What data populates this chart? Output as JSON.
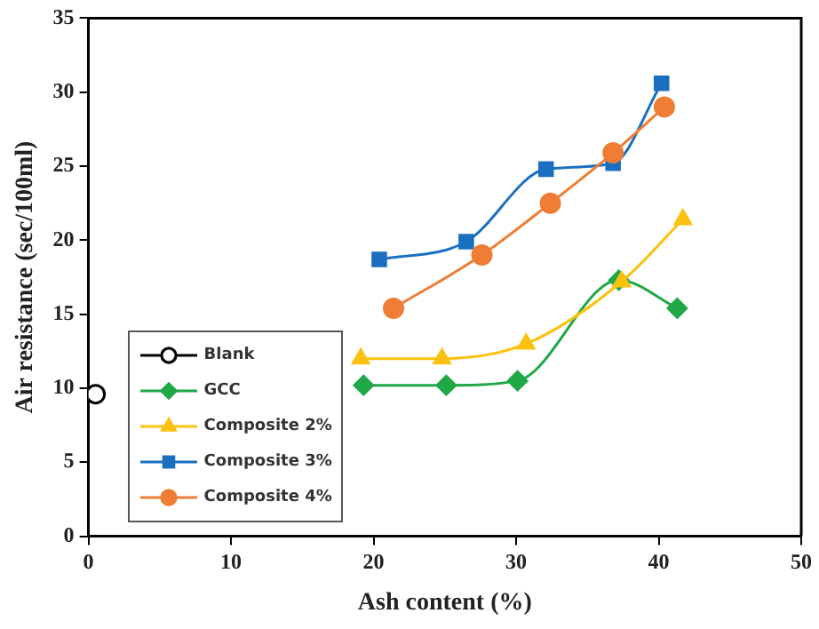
{
  "chart_data": {
    "type": "line",
    "xlabel": "Ash content (%)",
    "ylabel": "Air resistance (sec/100ml)",
    "xlim": [
      0,
      50
    ],
    "xticks": [
      0,
      10,
      20,
      30,
      40,
      50
    ],
    "ylim": [
      0,
      35
    ],
    "yticks": [
      0,
      5,
      10,
      15,
      20,
      25,
      30,
      35
    ],
    "grid": false,
    "legend": "bottom left",
    "series": [
      {
        "name": "Blank",
        "type": "scatter",
        "color": "#000000",
        "marker": "circle",
        "x": [
          0.5
        ],
        "values": [
          9.6
        ]
      },
      {
        "name": "GCC",
        "color": "#1fa845",
        "marker": "diamond",
        "x": [
          19.3,
          25.1,
          30.1,
          37.2,
          41.3
        ],
        "values": [
          10.2,
          10.2,
          10.5,
          17.3,
          15.4
        ]
      },
      {
        "name": "Composite 2%",
        "color": "#fbc10e",
        "marker": "triangle",
        "x": [
          19.1,
          24.8,
          30.7,
          37.4,
          41.7
        ],
        "values": [
          12.0,
          12.0,
          13.0,
          17.2,
          21.4
        ]
      },
      {
        "name": "Composite 3%",
        "color": "#1a6fc1",
        "marker": "square",
        "x": [
          20.4,
          26.5,
          32.1,
          36.8,
          40.2
        ],
        "values": [
          18.7,
          19.9,
          24.8,
          25.2,
          30.6
        ]
      },
      {
        "name": "Composite 4%",
        "color": "#ef7d35",
        "marker": "circle",
        "x": [
          21.4,
          27.6,
          32.4,
          36.8,
          40.4
        ],
        "values": [
          15.4,
          19.0,
          22.5,
          25.9,
          29.0
        ]
      }
    ]
  }
}
